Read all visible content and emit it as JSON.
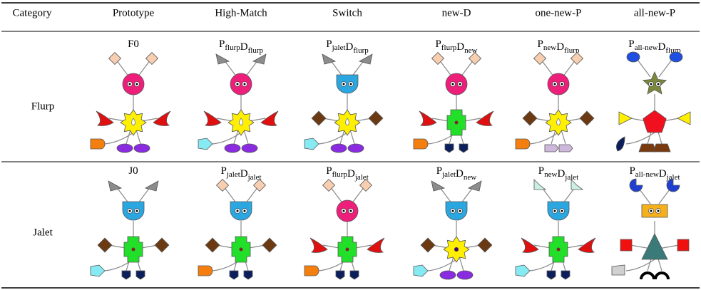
{
  "table": {
    "header": [
      "Category",
      "Prototype",
      "High-Match",
      "Switch",
      "new-D",
      "one-new-P",
      "all-new-P"
    ],
    "rows": [
      {
        "category": "Flurp",
        "cells": [
          [
            {
              "text": "F0"
            }
          ],
          [
            {
              "text": "P",
              "sub": "flurp"
            },
            {
              "text": "D",
              "sub": "flurp"
            }
          ],
          [
            {
              "text": "P",
              "sub": "jalet"
            },
            {
              "text": "D",
              "sub": "flurp"
            }
          ],
          [
            {
              "text": "P",
              "sub": "flurp"
            },
            {
              "text": "D",
              "sub": "new"
            }
          ],
          [
            {
              "text": "P",
              "sub": "new"
            },
            {
              "text": "D",
              "sub": "flurp"
            }
          ],
          [
            {
              "text": "P",
              "sub": "all-new"
            },
            {
              "text": "D",
              "sub": "flurp"
            }
          ]
        ]
      },
      {
        "category": "Jalet",
        "cells": [
          [
            {
              "text": "J0"
            }
          ],
          [
            {
              "text": "P",
              "sub": "jalet"
            },
            {
              "text": "D",
              "sub": "jalet"
            }
          ],
          [
            {
              "text": "P",
              "sub": "flurp"
            },
            {
              "text": "D",
              "sub": "jalet"
            }
          ],
          [
            {
              "text": "P",
              "sub": "jalet"
            },
            {
              "text": "D",
              "sub": "new"
            }
          ],
          [
            {
              "text": "P",
              "sub": "new"
            },
            {
              "text": "D",
              "sub": "jalet"
            }
          ],
          [
            {
              "text": "P",
              "sub": "all-new"
            },
            {
              "text": "D",
              "sub": "jalet"
            }
          ]
        ]
      }
    ]
  }
}
